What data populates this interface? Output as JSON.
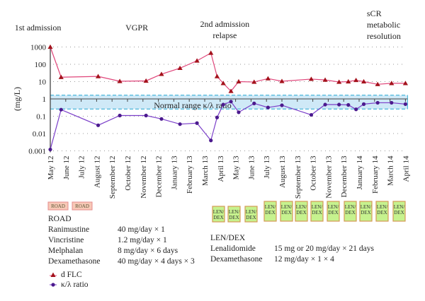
{
  "chart_data": {
    "type": "line",
    "ylabel": "(mg/L)",
    "yscale": "log",
    "ylim": [
      0.001,
      1000
    ],
    "yticks": [
      "1000",
      "100",
      "10",
      "1",
      "0.1",
      "0.01",
      "0.001"
    ],
    "ytick_values": [
      1000,
      100,
      10,
      1,
      0.1,
      0.01,
      0.001
    ],
    "categories": [
      "May 12",
      "June 12",
      "July 12",
      "August 12",
      "September 12",
      "October 12",
      "November 12",
      "December 12",
      "January 13",
      "February 13",
      "March 13",
      "April 13",
      "May 13",
      "June 13",
      "July 13",
      "August 13",
      "September 13",
      "October 13",
      "November 13",
      "December 13",
      "January 14",
      "February 14",
      "March 14",
      "April 14"
    ],
    "grid": "horizontal-dotted",
    "normal_range": {
      "label": "Normal range κ/λ ratio",
      "low": 0.26,
      "high": 1.65,
      "color": "#cfe9f7",
      "border": "#3bb0d6"
    },
    "series": [
      {
        "name": "d FLC",
        "color": "#e0457a",
        "marker": "triangle",
        "marker_color": "#a3121b",
        "x_months": [
          0,
          0.7,
          3.1,
          4.5,
          6.2,
          7.2,
          8.4,
          9.5,
          10.4,
          10.8,
          11.2,
          11.7,
          12.2,
          13.2,
          14.1,
          15.0,
          16.9,
          17.8,
          18.7,
          19.3,
          19.8,
          20.3,
          21.2,
          22.1,
          23.0
        ],
        "values": [
          1000,
          18,
          20,
          10.5,
          11,
          27,
          60,
          160,
          450,
          20,
          8,
          2.8,
          10,
          9.5,
          15,
          10.5,
          14,
          12.5,
          9.5,
          10,
          12,
          10,
          7,
          8,
          8
        ]
      },
      {
        "name": "κ/λ ratio",
        "color": "#7b3fc9",
        "marker": "circle",
        "marker_color": "#4b1a8e",
        "x_months": [
          0,
          0.7,
          3.1,
          4.5,
          6.2,
          7.2,
          8.4,
          9.5,
          10.4,
          10.8,
          11.2,
          11.7,
          12.2,
          13.2,
          14.1,
          15.0,
          16.9,
          17.8,
          18.7,
          19.3,
          19.8,
          20.3,
          21.2,
          22.1,
          23.0
        ],
        "values": [
          0.0012,
          0.24,
          0.03,
          0.11,
          0.11,
          0.07,
          0.035,
          0.04,
          0.004,
          0.085,
          0.47,
          0.7,
          0.17,
          0.55,
          0.32,
          0.43,
          0.12,
          0.47,
          0.47,
          0.45,
          0.25,
          0.5,
          0.6,
          0.6,
          0.5
        ]
      }
    ],
    "annotations": [
      {
        "lines": [
          "1st admission"
        ],
        "at_month": -0.8
      },
      {
        "lines": [
          "VGPR"
        ],
        "at_month": 5.6
      },
      {
        "lines": [
          "2nd admission",
          "relapse"
        ],
        "at_month": 11.3
      },
      {
        "lines": [
          "sCR",
          "metabolic",
          "resolution"
        ],
        "at_month": 20.5
      }
    ],
    "treatment_boxes": {
      "road": {
        "label": "ROAD",
        "count": 2,
        "color": "#f7c8b6",
        "border": "#e68d8d"
      },
      "lendex": {
        "label_top": "LEN/",
        "label_bottom": "DEX",
        "count": 12,
        "color": "#c6f28e",
        "border": "#d49a55"
      }
    }
  },
  "regimens": {
    "road": {
      "title": "ROAD",
      "rows": [
        {
          "drug": "Ranimustine",
          "dose": "40 mg/day × 1"
        },
        {
          "drug": "Vincristine",
          "dose": "1.2 mg/day × 1"
        },
        {
          "drug": "Melphalan",
          "dose": "8 mg/day × 6 days"
        },
        {
          "drug": "Dexamethasone",
          "dose": "40 mg/day × 4 days × 3"
        }
      ]
    },
    "lendex": {
      "title": "LEN/DEX",
      "rows": [
        {
          "drug": "Lenalidomide",
          "dose": "15 mg or 20 mg/day × 21 days"
        },
        {
          "drug": "Dexamethasone",
          "dose": "12 mg/day × 1 × 4"
        }
      ]
    }
  },
  "legend": [
    {
      "label": "d FLC",
      "icon": "triangle-marker",
      "color": "#a3121b"
    },
    {
      "label": "κ/λ ratio",
      "icon": "circle-marker",
      "color": "#4b1a8e"
    }
  ]
}
